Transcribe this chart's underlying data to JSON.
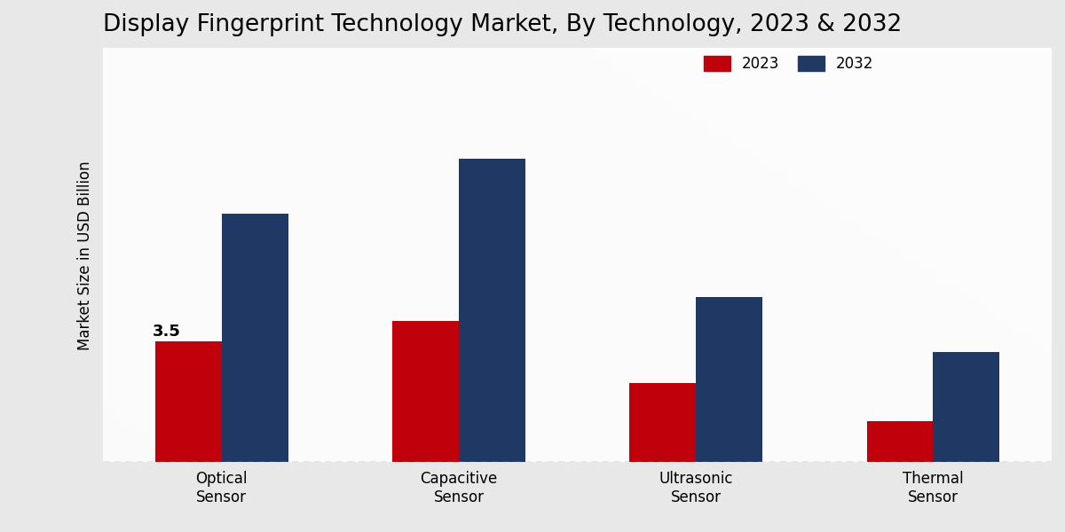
{
  "title": "Display Fingerprint Technology Market, By Technology, 2023 & 2032",
  "ylabel": "Market Size in USD Billion",
  "categories": [
    "Optical\nSensor",
    "Capacitive\nSensor",
    "Ultrasonic\nSensor",
    "Thermal\nSensor"
  ],
  "values_2023": [
    3.5,
    4.1,
    2.3,
    1.2
  ],
  "values_2032": [
    7.2,
    8.8,
    4.8,
    3.2
  ],
  "color_2023": "#c0000b",
  "color_2032": "#1f3864",
  "annotation_text": "3.5",
  "annotation_category": 0,
  "bar_width": 0.28,
  "ylim": [
    0,
    12
  ],
  "title_fontsize": 19,
  "label_fontsize": 12,
  "tick_fontsize": 12,
  "legend_fontsize": 12,
  "bg_color_light": "#e8e8e8",
  "bg_color_lighter": "#f0f0f0",
  "dashed_line_y": 0,
  "legend_labels": [
    "2023",
    "2032"
  ],
  "bottom_bar_color": "#cc0000",
  "bottom_bar_height": 8
}
